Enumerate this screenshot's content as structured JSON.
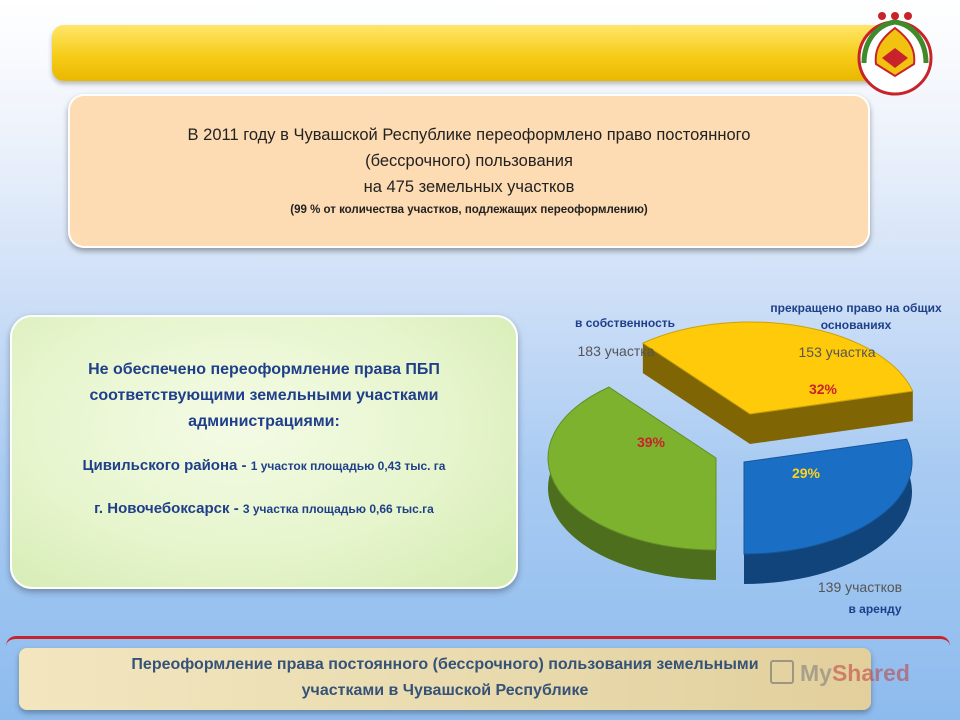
{
  "header": {
    "line1": "В 2011 году в  Чувашской Республике переоформлено право постоянного",
    "line2": "(бессрочного) пользования",
    "line3": "на 475 земельных участков",
    "note": "(99 % от количества участков, подлежащих переоформлению)"
  },
  "green_box": {
    "heading": [
      "Не обеспечено переоформление  права ПБП",
      "соответствующими земельными участками",
      "администрациями:"
    ],
    "item1_main": "Цивильского района - ",
    "item1_detail": "1 участок площадью 0,43 тыс. га",
    "item2_main": "г. Новочебоксарск - ",
    "item2_detail": "3 участка площадью 0,66 тыс.га"
  },
  "footer": {
    "line1": "Переоформление права постоянного  (бессрочного) пользования земельными",
    "line2": "участками в Чувашской Республике"
  },
  "watermark": {
    "part1": "My",
    "part2": "Shared"
  },
  "colors": {
    "green": "#7cb22e",
    "yellow": "#ffca0a",
    "blue": "#1a6ec4",
    "label_red": "#c8232a",
    "label_blue": "#1f3f8a"
  },
  "chart_data": {
    "type": "pie",
    "style": "3d-exploded",
    "series": [
      {
        "name": "в собственность",
        "count_label": "183  участка",
        "percent": 39,
        "percent_label": "39%",
        "color": "#7cb22e"
      },
      {
        "name": "прекращено право на общих основаниях",
        "count_label": "153 участка",
        "percent": 32,
        "percent_label": "32%",
        "color": "#ffca0a"
      },
      {
        "name": "в аренду",
        "count_label": "139  участков",
        "percent": 29,
        "percent_label": "29%",
        "color": "#1a6ec4"
      }
    ]
  }
}
